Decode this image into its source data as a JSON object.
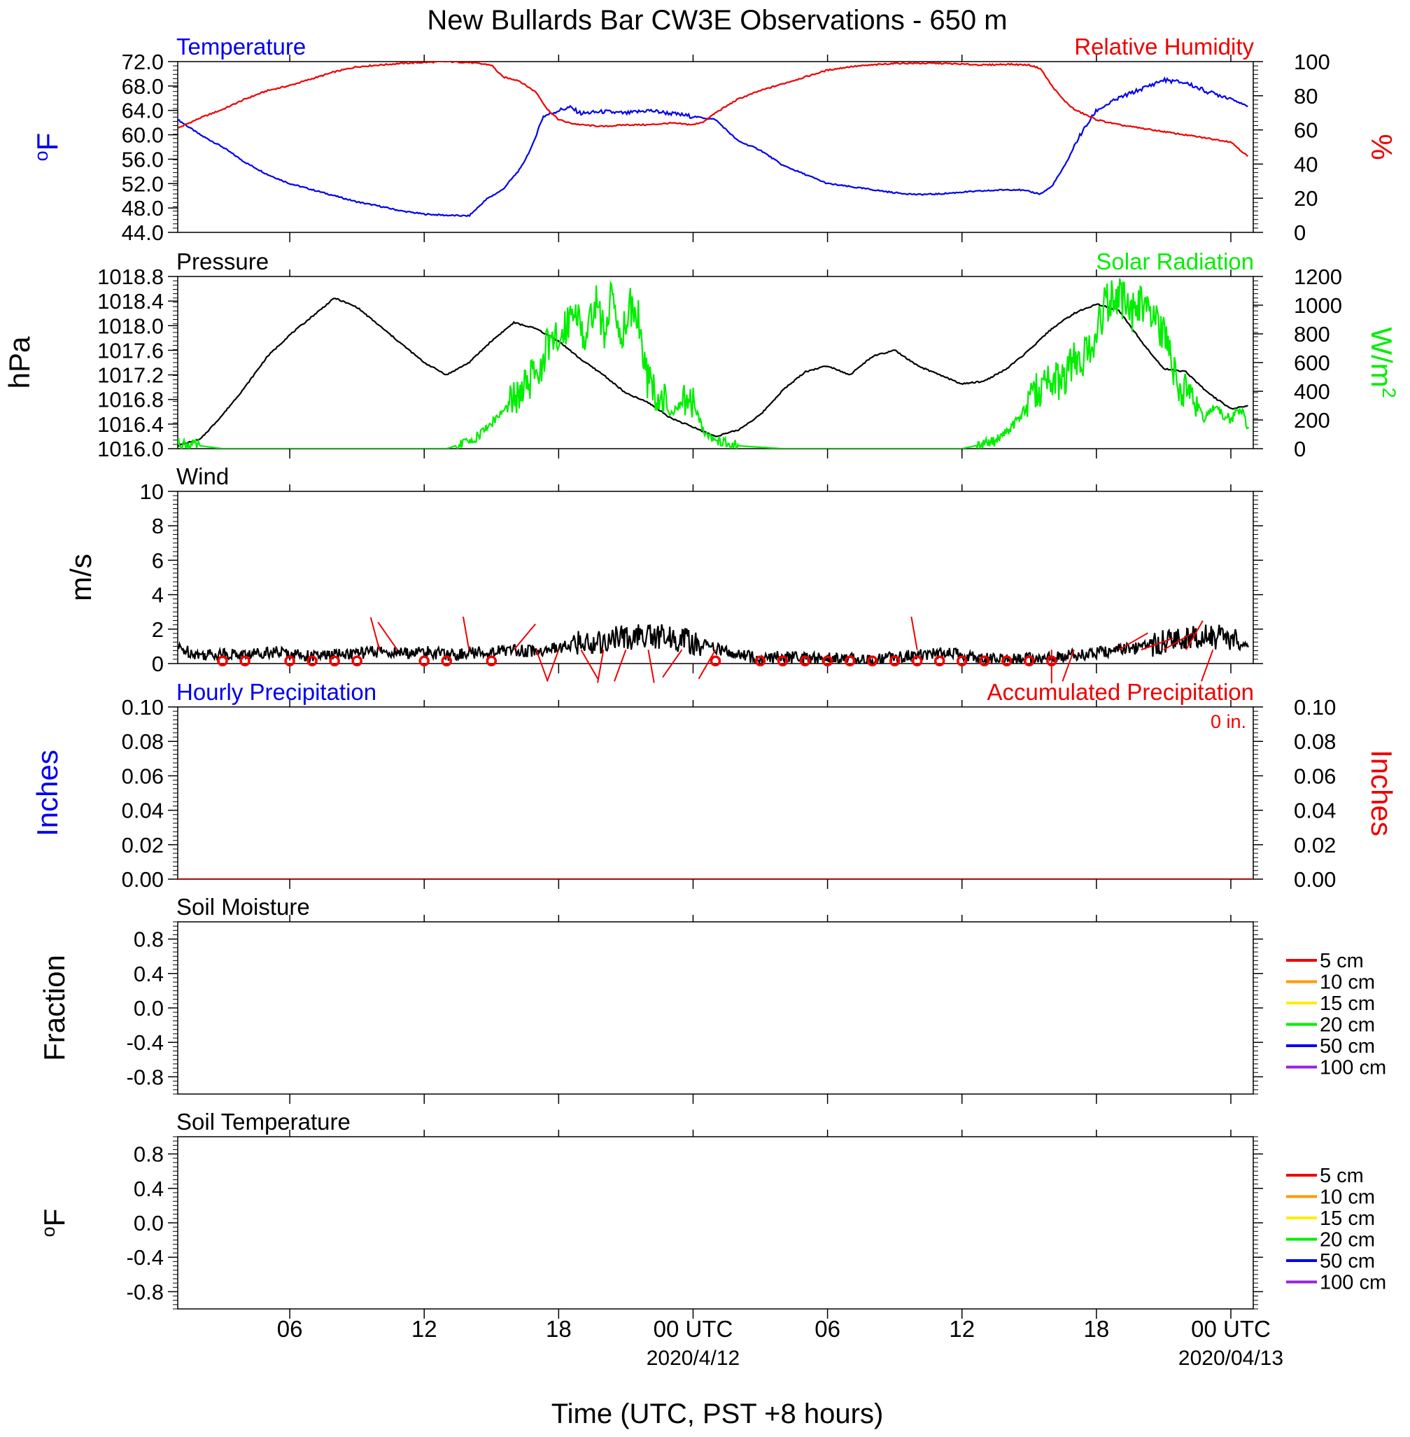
{
  "page_title": "New Bullards Bar CW3E Observations - 650 m",
  "x_axis": {
    "label": "Time (UTC, PST +8 hours)",
    "range_hours": [
      0,
      48
    ],
    "ticks": [
      {
        "hour": 5,
        "label": "06",
        "date": ""
      },
      {
        "hour": 11,
        "label": "12",
        "date": ""
      },
      {
        "hour": 17,
        "label": "18",
        "date": ""
      },
      {
        "hour": 23,
        "label": "00 UTC",
        "date": "2020/4/12"
      },
      {
        "hour": 29,
        "label": "06",
        "date": ""
      },
      {
        "hour": 35,
        "label": "12",
        "date": ""
      },
      {
        "hour": 41,
        "label": "18",
        "date": ""
      },
      {
        "hour": 47,
        "label": "00 UTC",
        "date": "2020/04/13"
      }
    ]
  },
  "colors": {
    "temperature": "#0000ee",
    "humidity": "#ee0000",
    "pressure": "#000000",
    "solar": "#00ee00",
    "wind": "#000000",
    "wind_barb": "#ee0000",
    "precip": "#ee0000",
    "soil_levels": [
      "#ee0000",
      "#ff9900",
      "#ffee00",
      "#00ee00",
      "#0000ee",
      "#9922dd"
    ]
  },
  "chart_data": [
    {
      "type": "line",
      "panel": "temperature-humidity",
      "left_title": "Temperature",
      "right_title": "Relative Humidity",
      "left_ylabel": "oF",
      "right_ylabel": "%",
      "left_ylim": [
        44,
        72
      ],
      "right_ylim": [
        0,
        100
      ],
      "left_ticks": [
        "44.0",
        "48.0",
        "52.0",
        "56.0",
        "60.0",
        "64.0",
        "68.0",
        "72.0"
      ],
      "right_ticks": [
        "0",
        "20",
        "40",
        "60",
        "80",
        "100"
      ],
      "series": [
        {
          "key": "temperature",
          "axis": "left",
          "x": [
            0,
            1,
            2,
            3,
            4,
            5,
            6,
            7,
            8,
            9,
            10,
            11,
            12,
            13,
            13.8,
            14.5,
            15.3,
            15.8,
            16.3,
            17,
            17.5,
            18,
            19,
            20,
            21,
            22,
            23,
            24,
            25,
            26,
            27,
            28,
            29,
            30,
            31,
            32,
            33,
            34,
            35,
            36,
            37,
            37.5,
            38,
            38.5,
            39,
            39.6,
            40.2,
            41,
            42,
            43,
            44,
            45,
            46,
            47,
            47.8
          ],
          "values": [
            62.5,
            60,
            58,
            55.5,
            53.5,
            52,
            51,
            50,
            49,
            48.3,
            47.5,
            47,
            46.8,
            46.7,
            49.5,
            51,
            54.5,
            58,
            63,
            64,
            64.5,
            63.5,
            63.8,
            63.5,
            64,
            63.5,
            63,
            62.5,
            59,
            57.5,
            55,
            53.5,
            52,
            51.5,
            51,
            50.5,
            50.2,
            50.3,
            50.6,
            50.8,
            51,
            51,
            50.7,
            50.3,
            51.5,
            55,
            59.5,
            64,
            66,
            67.5,
            69,
            68.5,
            67,
            66,
            64.5
          ]
        },
        {
          "key": "humidity",
          "axis": "right",
          "x": [
            0,
            1,
            2,
            3,
            4,
            5,
            6,
            7,
            8,
            9,
            10,
            11,
            12,
            13,
            14,
            14.5,
            15.2,
            16,
            16.5,
            17,
            17.5,
            18,
            19,
            20,
            21,
            22,
            23,
            23.5,
            24,
            25,
            26,
            27,
            28,
            29,
            30,
            31,
            32,
            33,
            34,
            35,
            36,
            37,
            38,
            38.5,
            39,
            39.5,
            40,
            41,
            42,
            43,
            44,
            45,
            46,
            47,
            47.8
          ],
          "values": [
            61,
            67,
            72,
            78,
            83,
            86,
            90,
            94,
            97,
            98,
            99,
            99.5,
            100,
            99.5,
            98,
            91,
            89,
            82,
            72,
            66,
            64,
            63,
            62,
            63,
            63,
            64,
            63,
            65,
            70,
            78,
            83,
            87,
            91,
            95,
            97,
            98,
            99,
            99,
            99,
            98.5,
            98,
            98.5,
            98,
            96,
            86,
            78,
            72,
            66,
            63,
            61,
            59,
            57,
            55,
            53,
            44
          ]
        }
      ]
    },
    {
      "type": "line",
      "panel": "pressure-solar",
      "left_title": "Pressure",
      "right_title": "Solar Radiation",
      "left_ylabel": "hPa",
      "right_ylabel": "W/m2",
      "left_ylim": [
        1016.0,
        1018.8
      ],
      "right_ylim": [
        0,
        1200
      ],
      "left_ticks": [
        "1016.0",
        "1016.4",
        "1016.8",
        "1017.2",
        "1017.6",
        "1018.0",
        "1018.4",
        "1018.8"
      ],
      "right_ticks": [
        "0",
        "200",
        "400",
        "600",
        "800",
        "1000",
        "1200"
      ],
      "series": [
        {
          "key": "pressure",
          "axis": "left",
          "x": [
            0,
            1,
            2,
            3,
            4,
            5,
            6,
            7,
            8,
            9,
            10,
            11,
            12,
            13,
            14,
            15,
            16,
            17,
            18,
            19,
            20,
            21,
            22,
            23,
            24,
            25,
            26,
            27,
            28,
            29,
            30,
            31,
            32,
            33,
            34,
            35,
            36,
            37,
            38,
            39,
            40,
            41,
            42,
            43,
            44,
            45,
            46,
            47,
            47.8
          ],
          "values": [
            1016.05,
            1016.15,
            1016.55,
            1017.0,
            1017.5,
            1017.85,
            1018.15,
            1018.45,
            1018.3,
            1018.0,
            1017.7,
            1017.4,
            1017.2,
            1017.4,
            1017.75,
            1018.05,
            1017.95,
            1017.75,
            1017.45,
            1017.2,
            1016.9,
            1016.75,
            1016.5,
            1016.35,
            1016.2,
            1016.3,
            1016.55,
            1016.95,
            1017.25,
            1017.35,
            1017.2,
            1017.5,
            1017.6,
            1017.35,
            1017.2,
            1017.05,
            1017.1,
            1017.3,
            1017.6,
            1017.95,
            1018.2,
            1018.35,
            1018.25,
            1017.75,
            1017.3,
            1017.25,
            1016.9,
            1016.65,
            1016.7
          ]
        },
        {
          "key": "solar",
          "axis": "right",
          "x": [
            0,
            1,
            2,
            12,
            13,
            13.5,
            14,
            15,
            16,
            16.5,
            17,
            17.4,
            17.8,
            18.2,
            18.6,
            19,
            19.4,
            19.8,
            20.2,
            20.6,
            21,
            21.5,
            22,
            22.5,
            23,
            23.5,
            24,
            25,
            26,
            27,
            28,
            35,
            36.5,
            37,
            37.5,
            38,
            38.5,
            39,
            39.5,
            40,
            40.5,
            41,
            41.4,
            41.8,
            42.2,
            42.6,
            43,
            43.4,
            43.8,
            44.2,
            44.6,
            45,
            45.4,
            45.8,
            46.2,
            46.6,
            47,
            47.4,
            47.8
          ],
          "values": [
            40,
            20,
            0,
            0,
            50,
            100,
            180,
            330,
            520,
            700,
            750,
            900,
            1000,
            700,
            1050,
            800,
            1080,
            780,
            1000,
            900,
            450,
            380,
            250,
            300,
            330,
            120,
            60,
            20,
            10,
            0,
            0,
            0,
            50,
            120,
            200,
            320,
            420,
            450,
            500,
            600,
            650,
            800,
            1000,
            1050,
            1040,
            950,
            1000,
            900,
            850,
            700,
            450,
            400,
            350,
            200,
            300,
            250,
            200,
            280,
            150
          ]
        }
      ]
    },
    {
      "type": "line",
      "panel": "wind",
      "left_title": "Wind",
      "left_ylabel": "m/s",
      "left_ylim": [
        0,
        10
      ],
      "left_ticks": [
        "0",
        "2",
        "4",
        "6",
        "8",
        "10"
      ],
      "series": [
        {
          "key": "wind",
          "axis": "left",
          "x": [
            0,
            1,
            2,
            3,
            4,
            5,
            6,
            7,
            8,
            9,
            10,
            11,
            12,
            13,
            14,
            15,
            16,
            17,
            18,
            19,
            20,
            21,
            22,
            23,
            24,
            25,
            26,
            27,
            28,
            29,
            30,
            31,
            32,
            33,
            34,
            35,
            36,
            37,
            38,
            39,
            40,
            41,
            42,
            43,
            44,
            45,
            46,
            47,
            47.8
          ],
          "values": [
            0.9,
            0.5,
            0.6,
            0.5,
            0.7,
            0.6,
            0.4,
            0.5,
            0.6,
            0.7,
            0.6,
            0.7,
            0.5,
            0.6,
            0.7,
            0.8,
            0.7,
            0.9,
            1.2,
            1.3,
            1.5,
            1.6,
            1.5,
            1.2,
            0.9,
            0.5,
            0.3,
            0.4,
            0.3,
            0.3,
            0.3,
            0.2,
            0.4,
            0.5,
            0.6,
            0.5,
            0.3,
            0.2,
            0.3,
            0.4,
            0.5,
            0.6,
            0.8,
            0.9,
            1.3,
            1.5,
            1.6,
            1.4,
            0.8
          ],
          "barbs": [
            {
              "x": 9,
              "angle": -15
            },
            {
              "x": 9.8,
              "angle": -35
            },
            {
              "x": 13,
              "angle": -10
            },
            {
              "x": 15,
              "angle": 40
            },
            {
              "x": 16,
              "angle": 160
            },
            {
              "x": 17,
              "angle": 200
            },
            {
              "x": 18,
              "angle": 150
            },
            {
              "x": 19,
              "angle": 190
            },
            {
              "x": 20,
              "angle": 200
            },
            {
              "x": 21,
              "angle": 170
            },
            {
              "x": 22.5,
              "angle": 215
            },
            {
              "x": 24,
              "angle": 210
            },
            {
              "x": 33,
              "angle": -10
            },
            {
              "x": 39,
              "angle": 180
            },
            {
              "x": 40,
              "angle": 200
            },
            {
              "x": 42,
              "angle": 60
            },
            {
              "x": 43,
              "angle": 70
            },
            {
              "x": 44,
              "angle": 60
            },
            {
              "x": 45,
              "angle": 30
            },
            {
              "x": 46.2,
              "angle": 200
            }
          ],
          "calm_circles": [
            2,
            3,
            5,
            6,
            7,
            8,
            11,
            12,
            14,
            24,
            26,
            27,
            28,
            29,
            30,
            31,
            32,
            33,
            34,
            35,
            36,
            37,
            38,
            39
          ]
        }
      ]
    },
    {
      "type": "line",
      "panel": "precipitation",
      "left_title": "Hourly Precipitation",
      "right_title": "Accumulated Precipitation",
      "total_label": "0 in.",
      "left_ylabel": "Inches",
      "right_ylabel": "Inches",
      "left_ylim": [
        0,
        0.1
      ],
      "right_ylim": [
        0,
        0.1
      ],
      "left_ticks": [
        "0.00",
        "0.02",
        "0.04",
        "0.06",
        "0.08",
        "0.10"
      ],
      "right_ticks": [
        "0.00",
        "0.02",
        "0.04",
        "0.06",
        "0.08",
        "0.10"
      ],
      "series": [
        {
          "key": "precip",
          "axis": "left",
          "x": [
            0,
            48
          ],
          "values": [
            0,
            0
          ]
        }
      ]
    },
    {
      "type": "line",
      "panel": "soil-moisture",
      "left_title": "Soil Moisture",
      "left_ylabel": "Fraction",
      "left_ylim": [
        -1,
        1
      ],
      "left_ticks": [
        "-0.8",
        "-0.4",
        "0.0",
        "0.4",
        "0.8"
      ],
      "legend": [
        "5 cm",
        "10 cm",
        "15 cm",
        "20 cm",
        "50 cm",
        "100 cm"
      ],
      "series": []
    },
    {
      "type": "line",
      "panel": "soil-temperature",
      "left_title": "Soil Temperature",
      "left_ylabel": "oF",
      "left_ylim": [
        -1,
        1
      ],
      "left_ticks": [
        "-0.8",
        "-0.4",
        "0.0",
        "0.4",
        "0.8"
      ],
      "legend": [
        "5 cm",
        "10 cm",
        "15 cm",
        "20 cm",
        "50 cm",
        "100 cm"
      ],
      "series": []
    }
  ]
}
